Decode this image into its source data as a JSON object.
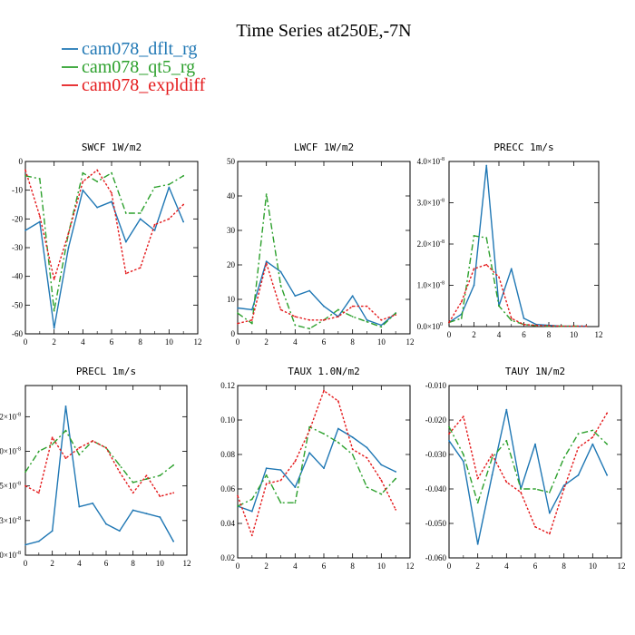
{
  "page_title": "Time Series at250E,-7N",
  "legend": [
    {
      "label": "cam078_dflt_rg",
      "color": "#1f77b4",
      "dash": "solid"
    },
    {
      "label": "cam078_qt5_rg",
      "color": "#2ca02c",
      "dash": "dashdot"
    },
    {
      "label": "cam078_expldiff",
      "color": "#e41a1c",
      "dash": "dotted"
    }
  ],
  "chart_data": [
    {
      "type": "line",
      "title": "SWCF  1W/m2",
      "xlim": [
        0,
        12
      ],
      "ylim": [
        -60,
        0
      ],
      "xticks": [
        0,
        2,
        4,
        6,
        8,
        10,
        12
      ],
      "yticks": [
        {
          "value": -60,
          "label": "-60"
        },
        {
          "value": -50,
          "label": "-50"
        },
        {
          "value": -40,
          "label": "-40"
        },
        {
          "value": -30,
          "label": "-30"
        },
        {
          "value": -20,
          "label": "-20"
        },
        {
          "value": -10,
          "label": "-10"
        },
        {
          "value": 0,
          "label": "0"
        }
      ],
      "x": [
        0,
        1,
        2,
        3,
        4,
        5,
        6,
        7,
        8,
        9,
        10,
        11
      ],
      "series": [
        {
          "name": "cam078_dflt_rg",
          "values": [
            -24,
            -21,
            -58,
            -30,
            -10,
            -16,
            -14,
            -28,
            -20,
            -24,
            -9,
            -21
          ]
        },
        {
          "name": "cam078_qt5_rg",
          "values": [
            -5,
            -6,
            -52,
            -25,
            -4,
            -7,
            -4,
            -18,
            -18,
            -9,
            -8,
            -5
          ]
        },
        {
          "name": "cam078_expldiff",
          "values": [
            -3,
            -19,
            -41,
            -25,
            -7,
            -3,
            -11,
            -39,
            -37,
            -22,
            -20,
            -15
          ]
        }
      ]
    },
    {
      "type": "line",
      "title": "LWCF  1W/m2",
      "xlim": [
        0,
        12
      ],
      "ylim": [
        0,
        50
      ],
      "xticks": [
        0,
        2,
        4,
        6,
        8,
        10,
        12
      ],
      "yticks": [
        {
          "value": 0,
          "label": "0"
        },
        {
          "value": 10,
          "label": "10"
        },
        {
          "value": 20,
          "label": "20"
        },
        {
          "value": 30,
          "label": "30"
        },
        {
          "value": 40,
          "label": "40"
        },
        {
          "value": 50,
          "label": "50"
        }
      ],
      "x": [
        0,
        1,
        2,
        3,
        4,
        5,
        6,
        7,
        8,
        9,
        10,
        11
      ],
      "series": [
        {
          "name": "cam078_dflt_rg",
          "values": [
            7.5,
            7,
            21,
            18,
            11,
            12.5,
            8,
            5,
            11,
            4,
            2.5,
            6
          ]
        },
        {
          "name": "cam078_qt5_rg",
          "values": [
            6,
            3,
            40.5,
            14,
            2.5,
            1.5,
            4,
            7,
            5,
            3.5,
            2,
            6
          ]
        },
        {
          "name": "cam078_expldiff",
          "values": [
            3,
            4,
            20.5,
            7,
            5,
            4,
            4,
            5,
            8,
            8,
            4,
            5.5
          ]
        }
      ]
    },
    {
      "type": "line",
      "title": "PRECC  1m/s",
      "xlim": [
        0,
        12
      ],
      "ylim": [
        0,
        4e-08
      ],
      "xticks": [
        0,
        2,
        4,
        6,
        8,
        10,
        12
      ],
      "yticks": [
        {
          "value": 0,
          "label": "0.0×10",
          "exp": "0"
        },
        {
          "value": 1e-08,
          "label": "1.0×10",
          "exp": "-8"
        },
        {
          "value": 2e-08,
          "label": "2.0×10",
          "exp": "-8"
        },
        {
          "value": 3e-08,
          "label": "3.0×10",
          "exp": "-8"
        },
        {
          "value": 4e-08,
          "label": "4.0×10",
          "exp": "-8"
        }
      ],
      "x": [
        0,
        1,
        2,
        3,
        4,
        5,
        6,
        7,
        8,
        9,
        10,
        11
      ],
      "series": [
        {
          "name": "cam078_dflt_rg",
          "values": [
            1e-09,
            3e-09,
            1e-08,
            3.9e-08,
            5e-09,
            1.4e-08,
            2e-09,
            5e-10,
            3e-10,
            1e-10,
            1e-10,
            1e-10
          ]
        },
        {
          "name": "cam078_qt5_rg",
          "values": [
            1e-09,
            2e-09,
            2.2e-08,
            2.15e-08,
            5e-09,
            1.5e-09,
            5e-10,
            2e-10,
            1e-10,
            1e-10,
            1e-10,
            1e-10
          ]
        },
        {
          "name": "cam078_expldiff",
          "values": [
            1e-09,
            6e-09,
            1.4e-08,
            1.5e-08,
            1.2e-08,
            2e-09,
            5e-10,
            3e-10,
            2e-10,
            1e-10,
            1e-10,
            1e-10
          ]
        }
      ]
    },
    {
      "type": "line",
      "title": "PRECL  1m/s",
      "xlim": [
        0,
        12
      ],
      "ylim": [
        0,
        4.9
      ],
      "xticks": [
        0,
        2,
        4,
        6,
        8,
        10,
        12
      ],
      "yticks": [
        {
          "value": 0,
          "label": "0×10",
          "exp": "-8"
        },
        {
          "value": 1,
          "label": "3×10",
          "exp": "-8"
        },
        {
          "value": 2,
          "label": "5×10",
          "exp": "-8"
        },
        {
          "value": 3,
          "label": "0×10",
          "exp": "-8"
        },
        {
          "value": 4,
          "label": "2×10",
          "exp": "-8"
        }
      ],
      "x": [
        0,
        1,
        2,
        3,
        4,
        5,
        6,
        7,
        8,
        9,
        10,
        11
      ],
      "series": [
        {
          "name": "cam078_dflt_rg",
          "values": [
            0.3,
            0.4,
            0.7,
            4.3,
            1.4,
            1.5,
            0.9,
            0.7,
            1.3,
            1.2,
            1.1,
            0.4
          ]
        },
        {
          "name": "cam078_qt5_rg",
          "values": [
            2.4,
            3.0,
            3.2,
            3.6,
            2.9,
            3.3,
            3.1,
            2.6,
            2.1,
            2.2,
            2.3,
            2.6
          ]
        },
        {
          "name": "cam078_expldiff",
          "values": [
            2.0,
            1.8,
            3.4,
            2.8,
            3.1,
            3.3,
            3.1,
            2.4,
            1.8,
            2.3,
            1.7,
            1.8
          ]
        }
      ]
    },
    {
      "type": "line",
      "title": "TAUX  1.0N/m2",
      "xlim": [
        0,
        12
      ],
      "ylim": [
        0.02,
        0.12
      ],
      "xticks": [
        0,
        2,
        4,
        6,
        8,
        10,
        12
      ],
      "yticks": [
        {
          "value": 0.02,
          "label": "0.02"
        },
        {
          "value": 0.04,
          "label": "0.04"
        },
        {
          "value": 0.06,
          "label": "0.06"
        },
        {
          "value": 0.08,
          "label": "0.08"
        },
        {
          "value": 0.1,
          "label": "0.10"
        },
        {
          "value": 0.12,
          "label": "0.12"
        }
      ],
      "x": [
        0,
        1,
        2,
        3,
        4,
        5,
        6,
        7,
        8,
        9,
        10,
        11
      ],
      "series": [
        {
          "name": "cam078_dflt_rg",
          "values": [
            0.05,
            0.047,
            0.072,
            0.071,
            0.061,
            0.081,
            0.072,
            0.095,
            0.09,
            0.084,
            0.074,
            0.07
          ]
        },
        {
          "name": "cam078_qt5_rg",
          "values": [
            0.05,
            0.054,
            0.068,
            0.052,
            0.052,
            0.096,
            0.092,
            0.087,
            0.08,
            0.061,
            0.057,
            0.066
          ]
        },
        {
          "name": "cam078_expldiff",
          "values": [
            0.056,
            0.033,
            0.063,
            0.065,
            0.076,
            0.094,
            0.117,
            0.111,
            0.083,
            0.078,
            0.065,
            0.048
          ]
        }
      ]
    },
    {
      "type": "line",
      "title": "TAUY  1N/m2",
      "xlim": [
        0,
        12
      ],
      "ylim": [
        -0.06,
        -0.01
      ],
      "xticks": [
        0,
        2,
        4,
        6,
        8,
        10,
        12
      ],
      "yticks": [
        {
          "value": -0.06,
          "label": "-0.060"
        },
        {
          "value": -0.05,
          "label": "-0.050"
        },
        {
          "value": -0.04,
          "label": "-0.040"
        },
        {
          "value": -0.03,
          "label": "-0.030"
        },
        {
          "value": -0.02,
          "label": "-0.020"
        },
        {
          "value": -0.01,
          "label": "-0.010"
        }
      ],
      "x": [
        0,
        1,
        2,
        3,
        4,
        5,
        6,
        7,
        8,
        9,
        10,
        11
      ],
      "series": [
        {
          "name": "cam078_dflt_rg",
          "values": [
            -0.026,
            -0.032,
            -0.056,
            -0.036,
            -0.017,
            -0.04,
            -0.027,
            -0.047,
            -0.039,
            -0.036,
            -0.027,
            -0.036
          ]
        },
        {
          "name": "cam078_qt5_rg",
          "values": [
            -0.022,
            -0.03,
            -0.044,
            -0.031,
            -0.026,
            -0.04,
            -0.04,
            -0.041,
            -0.031,
            -0.024,
            -0.023,
            -0.027
          ]
        },
        {
          "name": "cam078_expldiff",
          "values": [
            -0.024,
            -0.019,
            -0.037,
            -0.03,
            -0.038,
            -0.041,
            -0.051,
            -0.053,
            -0.04,
            -0.028,
            -0.025,
            -0.018
          ]
        }
      ]
    }
  ]
}
